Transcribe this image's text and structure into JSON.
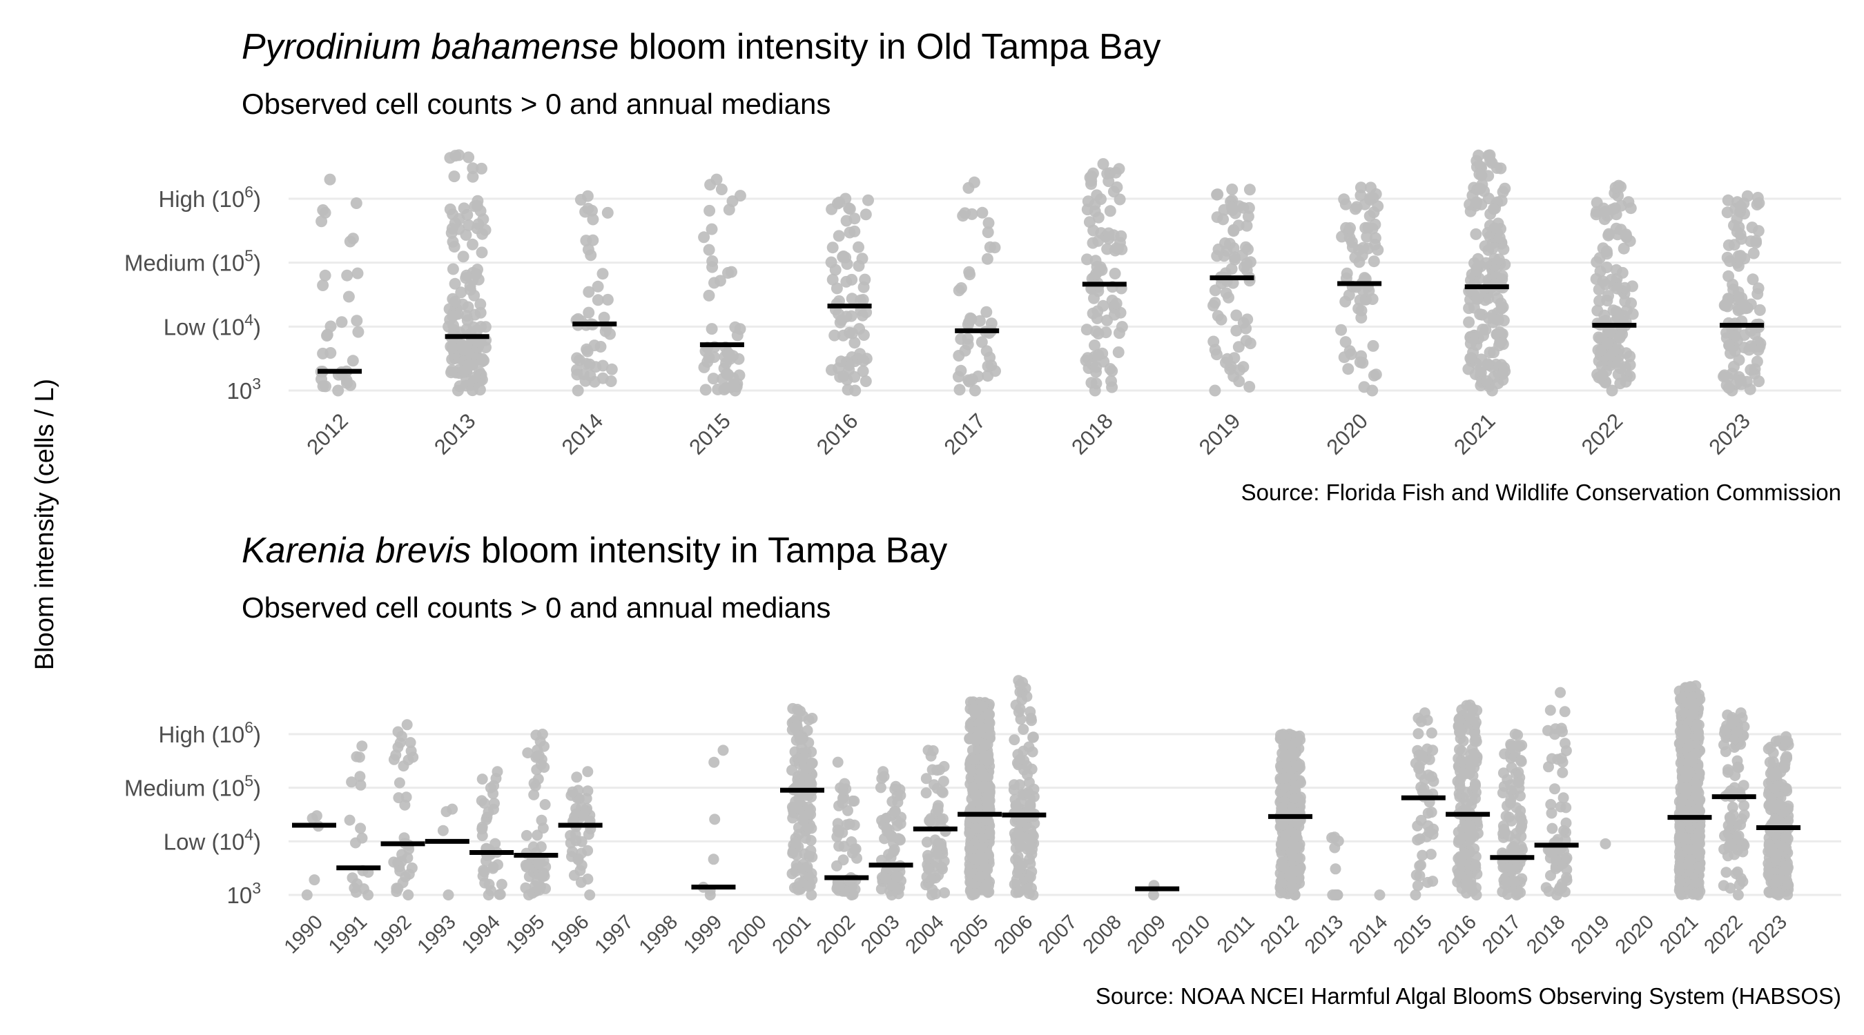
{
  "y_axis_label": "Bloom intensity (cells / L)",
  "chart_data": [
    {
      "type": "scatter",
      "title_italic": "Pyrodinium bahamense",
      "title_rest": " bloom intensity in Old Tampa Bay",
      "subtitle": "Observed cell counts > 0 and annual medians",
      "caption": "Source: Florida Fish and Wildlife Conservation Commission",
      "y_scale": "log10",
      "ylim": [
        1000,
        5000000
      ],
      "y_ticks": [
        {
          "value": 1000,
          "base": "10",
          "exp": "3",
          "prefix": "",
          "suffix": ""
        },
        {
          "value": 10000,
          "base": "Low (10",
          "exp": "4",
          "prefix": "",
          "suffix": ")"
        },
        {
          "value": 100000,
          "base": "Medium (10",
          "exp": "5",
          "prefix": "",
          "suffix": ")"
        },
        {
          "value": 1000000,
          "base": "High (10",
          "exp": "6",
          "prefix": "",
          "suffix": ")"
        }
      ],
      "grid": true,
      "point_color": "#bdbdbd",
      "median_color": "#000000",
      "categories": [
        "2012",
        "2013",
        "2014",
        "2015",
        "2016",
        "2017",
        "2018",
        "2019",
        "2020",
        "2021",
        "2022",
        "2023"
      ],
      "medians": [
        2000,
        7000,
        11000,
        5200,
        21000,
        8600,
        46000,
        58000,
        47000,
        42000,
        10500,
        10500
      ],
      "counts": [
        34,
        150,
        48,
        52,
        70,
        45,
        95,
        75,
        70,
        170,
        130,
        110
      ],
      "max": [
        2000000,
        4800000,
        1100000,
        2000000,
        1000000,
        1800000,
        3500000,
        1400000,
        1500000,
        4800000,
        1600000,
        1100000
      ]
    },
    {
      "type": "scatter",
      "title_italic": "Karenia brevis",
      "title_rest": " bloom intensity in Tampa Bay",
      "subtitle": "Observed cell counts > 0 and annual medians",
      "caption": "Source: NOAA NCEI Harmful Algal BloomS Observing System (HABSOS)",
      "y_scale": "log10",
      "ylim": [
        1000,
        10000000
      ],
      "y_ticks": [
        {
          "value": 1000,
          "base": "10",
          "exp": "3",
          "prefix": "",
          "suffix": ""
        },
        {
          "value": 10000,
          "base": "Low (10",
          "exp": "4",
          "prefix": "",
          "suffix": ")"
        },
        {
          "value": 100000,
          "base": "Medium (10",
          "exp": "5",
          "prefix": "",
          "suffix": ")"
        },
        {
          "value": 1000000,
          "base": "High (10",
          "exp": "6",
          "prefix": "",
          "suffix": ")"
        }
      ],
      "grid": true,
      "point_color": "#bdbdbd",
      "median_color": "#000000",
      "categories": [
        "1990",
        "1991",
        "1992",
        "1993",
        "1994",
        "1995",
        "1996",
        "1997",
        "1998",
        "1999",
        "2000",
        "2001",
        "2002",
        "2003",
        "2004",
        "2005",
        "2006",
        "2007",
        "2008",
        "2009",
        "2010",
        "2011",
        "2012",
        "2013",
        "2014",
        "2015",
        "2016",
        "2017",
        "2018",
        "2019",
        "2020",
        "2021",
        "2022",
        "2023"
      ],
      "medians": [
        20000,
        3200,
        9000,
        10000,
        6200,
        5500,
        20000,
        null,
        null,
        1400,
        null,
        90000,
        2100,
        3600,
        17000,
        32000,
        31000,
        null,
        null,
        1300,
        null,
        null,
        29000,
        null,
        null,
        65000,
        32000,
        5000,
        8500,
        null,
        null,
        28000,
        68000,
        18000
      ],
      "counts": [
        5,
        18,
        35,
        4,
        40,
        55,
        45,
        0,
        0,
        7,
        0,
        140,
        60,
        65,
        60,
        500,
        130,
        0,
        0,
        2,
        0,
        0,
        350,
        10,
        1,
        50,
        160,
        110,
        60,
        1,
        0,
        600,
        90,
        220
      ],
      "max": [
        30000,
        600000,
        1500000,
        40000,
        200000,
        1000000,
        200000,
        null,
        null,
        500000,
        null,
        3000000,
        300000,
        200000,
        500000,
        4000000,
        10000000,
        null,
        null,
        1500,
        null,
        null,
        1000000,
        12000,
        1000,
        2500000,
        3500000,
        1000000,
        6000000,
        9000,
        null,
        8000000,
        2500000,
        900000
      ]
    }
  ]
}
